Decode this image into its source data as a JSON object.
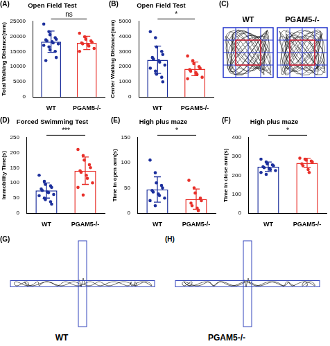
{
  "chart_data": [
    {
      "panel": "(A)",
      "type": "bar",
      "title": "Open Field Test",
      "y_label": "Total Walking Distance(mm)",
      "categories": [
        "WT",
        "PGAM5-/-"
      ],
      "values": [
        18200,
        17800
      ],
      "errors": [
        3500,
        2200
      ],
      "colors": [
        "#1c2f9c",
        "#e8302a"
      ],
      "ylim": [
        0,
        25000
      ],
      "yticks": [
        0,
        5000,
        10000,
        15000,
        20000,
        25000
      ],
      "significance": "ns",
      "points": [
        [
          24000,
          21500,
          20500,
          19500,
          19000,
          18800,
          18500,
          18200,
          17800,
          17500,
          17000,
          16500,
          15500,
          15000,
          13000,
          12000
        ],
        [
          21000,
          19800,
          19000,
          18500,
          18000,
          17800,
          17500,
          17200,
          16800,
          16000,
          15000
        ]
      ]
    },
    {
      "panel": "(B)",
      "type": "bar",
      "title": "Open Field Test",
      "y_label": "Center Walking Distance(mm)",
      "categories": [
        "WT",
        "PGAM5-/-"
      ],
      "values": [
        2450,
        1850
      ],
      "errors": [
        900,
        450
      ],
      "colors": [
        "#1c2f9c",
        "#e8302a"
      ],
      "ylim": [
        0,
        5000
      ],
      "yticks": [
        0,
        1000,
        2000,
        3000,
        4000,
        5000
      ],
      "significance": "*",
      "points": [
        [
          4300,
          3900,
          3300,
          3000,
          2800,
          2600,
          2500,
          2400,
          2300,
          2100,
          1900,
          1700,
          1500,
          1300,
          1000
        ],
        [
          2700,
          2400,
          2200,
          2000,
          1900,
          1800,
          1700,
          1600,
          1500,
          1300,
          1200
        ]
      ]
    },
    {
      "panel": "(D)",
      "type": "bar",
      "title": "Forced Swimming Test",
      "y_label": "Immobility Time(s)",
      "categories": [
        "WT",
        "PGAM5-/-"
      ],
      "values": [
        75,
        140
      ],
      "errors": [
        25,
        45
      ],
      "colors": [
        "#1c2f9c",
        "#e8302a"
      ],
      "ylim": [
        0,
        250
      ],
      "yticks": [
        0,
        50,
        100,
        150,
        200,
        250
      ],
      "significance": "***",
      "points": [
        [
          125,
          105,
          95,
          90,
          85,
          80,
          75,
          70,
          68,
          62,
          58,
          50,
          45,
          38,
          30
        ],
        [
          210,
          190,
          175,
          160,
          150,
          140,
          135,
          125,
          115,
          100,
          85,
          60
        ]
      ]
    },
    {
      "panel": "(E)",
      "type": "bar",
      "title": "High plus maze",
      "y_label": "Time in open arm(s)",
      "categories": [
        "WT",
        "PGAM5-/-"
      ],
      "values": [
        47,
        28
      ],
      "errors": [
        25,
        20
      ],
      "colors": [
        "#1c2f9c",
        "#e8302a"
      ],
      "ylim": [
        0,
        150
      ],
      "yticks": [
        0,
        50,
        100,
        150
      ],
      "significance": "*",
      "points": [
        [
          105,
          80,
          60,
          55,
          50,
          45,
          42,
          38,
          35,
          30,
          25,
          15
        ],
        [
          65,
          50,
          40,
          30,
          25,
          20,
          15,
          10,
          5
        ]
      ]
    },
    {
      "panel": "(F)",
      "type": "bar",
      "title": "High plus maze",
      "y_label": "Time in close arm(s)",
      "categories": [
        "WT",
        "PGAM5-/-"
      ],
      "values": [
        245,
        265
      ],
      "errors": [
        25,
        25
      ],
      "colors": [
        "#1c2f9c",
        "#e8302a"
      ],
      "ylim": [
        0,
        400
      ],
      "yticks": [
        0,
        100,
        200,
        300,
        400
      ],
      "significance": "*",
      "points": [
        [
          285,
          270,
          260,
          255,
          250,
          245,
          240,
          235,
          230,
          225,
          215,
          205
        ],
        [
          290,
          285,
          280,
          275,
          270,
          260,
          250,
          230,
          215
        ]
      ]
    }
  ],
  "open_field_tracks": {
    "panel": "(C)",
    "groups": [
      "WT",
      "PGAM5-/-"
    ]
  },
  "maze_tracks": [
    {
      "panel": "(G)",
      "group": "WT"
    },
    {
      "panel": "(H)",
      "group": "PGAM5-/-"
    }
  ]
}
